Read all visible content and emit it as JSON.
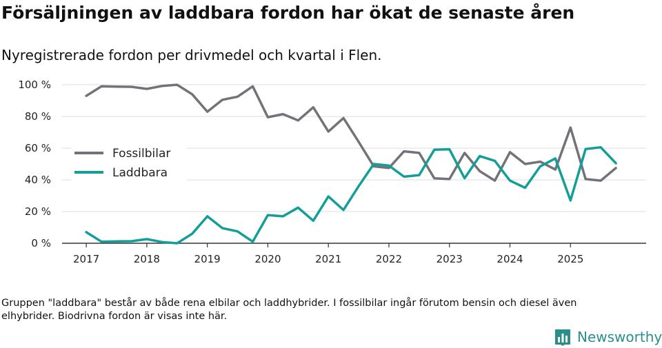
{
  "title": "Försäljningen av laddbara fordon har ökat de senaste åren",
  "subtitle": "Nyregistrerade fordon per drivmedel och kvartal i Flen.",
  "footnote": "Gruppen \"laddbara\" består av både rena elbilar och laddhybrider. I fossilbilar ingår förutom bensin och diesel även elhybrider. Biodrivna fordon är visas inte här.",
  "brand": {
    "name": "Newsworthy",
    "icon": "bar-chart-icon",
    "color": "#2a8f8a"
  },
  "chart_data": {
    "type": "line",
    "title": "Försäljningen av laddbara fordon har ökat de senaste åren",
    "subtitle": "Nyregistrerade fordon per drivmedel och kvartal i Flen.",
    "xlabel": "",
    "ylabel": "",
    "x": [
      2017.0,
      2017.25,
      2017.5,
      2017.75,
      2018.0,
      2018.25,
      2018.5,
      2018.75,
      2019.0,
      2019.25,
      2019.5,
      2019.75,
      2020.0,
      2020.25,
      2020.5,
      2020.75,
      2021.0,
      2021.25,
      2021.5,
      2021.75,
      2022.0,
      2022.25,
      2022.5,
      2022.75,
      2023.0,
      2023.25,
      2023.5,
      2023.75,
      2024.0,
      2024.25,
      2024.5,
      2024.75,
      2025.0,
      2025.25,
      2025.5,
      2025.75
    ],
    "xlim": [
      2016.6,
      2026.25
    ],
    "ylim": [
      0,
      100
    ],
    "x_ticks": [
      2017,
      2018,
      2019,
      2020,
      2021,
      2022,
      2023,
      2024,
      2025
    ],
    "x_tick_labels": [
      "2017",
      "2018",
      "2019",
      "2020",
      "2021",
      "2022",
      "2023",
      "2024",
      "2025"
    ],
    "y_ticks": [
      0,
      20,
      40,
      60,
      80,
      100
    ],
    "y_tick_labels": [
      "0 %",
      "20 %",
      "40 %",
      "60 %",
      "80 %",
      "100 %"
    ],
    "grid": true,
    "legend_position": "left",
    "series": [
      {
        "name": "Fossilbilar",
        "color": "#737278",
        "values": [
          93,
          99,
          98.8,
          98.7,
          97.4,
          99.2,
          100,
          94,
          83,
          90.5,
          92.5,
          99,
          79.5,
          81.5,
          77.5,
          85.8,
          70.5,
          79,
          64,
          48.5,
          47.5,
          58,
          57,
          41,
          40.5,
          57,
          45.5,
          39.5,
          57.5,
          50,
          51.5,
          46.5,
          73,
          40.5,
          39.5,
          47.5
        ]
      },
      {
        "name": "Laddbara",
        "color": "#139e98",
        "values": [
          7,
          1,
          1.2,
          1.3,
          2.6,
          0.8,
          0,
          6,
          17,
          9.5,
          7.5,
          1,
          17.8,
          17,
          22.5,
          14.2,
          29.5,
          21,
          36,
          50,
          49,
          42,
          43,
          59,
          59.3,
          41,
          55,
          52,
          39.5,
          35,
          48.5,
          53.5,
          27,
          59.5,
          60.5,
          50.5
        ]
      }
    ]
  }
}
